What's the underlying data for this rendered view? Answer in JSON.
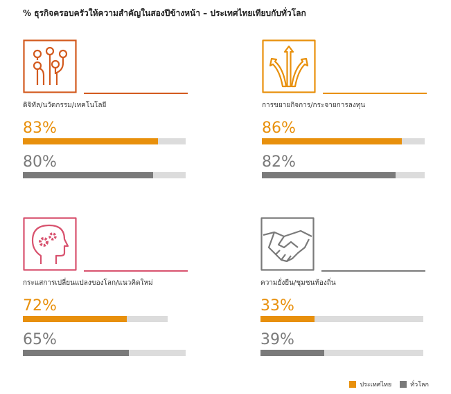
{
  "title": "% ธุรกิจครอบครัวให้ความสำคัญในสองปีข้างหน้า – ประเทศไทยเทียบกับทั่วโลก",
  "colors": {
    "local": "#e8900c",
    "global": "#7a7a7a",
    "track": "#dcdcdc"
  },
  "legend": {
    "local": "ประเทศไทย",
    "global": "ทั่วโลก"
  },
  "chart_data": {
    "type": "bar",
    "title": "% ธุรกิจครอบครัวให้ความสำคัญในสองปีข้างหน้า – ประเทศไทยเทียบกับทั่วโลก",
    "categories": [
      "ดิจิทัล/นวัตกรรม/เทคโนโลยี",
      "การขยายกิจการ/กระจายการลงทุน",
      "กระแสการเปลี่ยนแปลงของโลก/แนวคิดใหม่",
      "ความยั่งยืน/ชุมชนท้องถิ่น"
    ],
    "series": [
      {
        "name": "ประเทศไทย",
        "values": [
          83,
          86,
          72,
          33
        ]
      },
      {
        "name": "ทั่วโลก",
        "values": [
          80,
          82,
          65,
          39
        ]
      }
    ],
    "value_labels": {
      "local": [
        "83%",
        "86%",
        "72%",
        "33%"
      ],
      "global": [
        "80%",
        "82%",
        "65%",
        "39%"
      ]
    },
    "ylim": [
      0,
      100
    ],
    "legend_position": "bottom-right",
    "icons": [
      "circuit-icon",
      "diverging-arrows-icon",
      "head-gears-icon",
      "handshake-icon"
    ],
    "accent_colors": [
      "#d35a1e",
      "#e8900c",
      "#d8526e",
      "#7a7a7a"
    ]
  }
}
